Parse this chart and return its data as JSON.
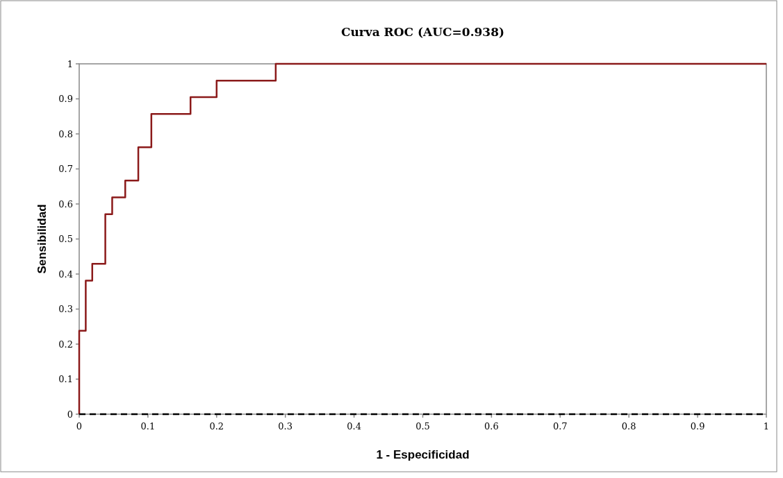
{
  "chart_data": {
    "type": "step",
    "title": "Curva ROC (AUC=0.938)",
    "xlabel": "1 - Especificidad",
    "ylabel": "Sensibilidad",
    "x": [
      0,
      0,
      0.0095,
      0.019,
      0.038,
      0.048,
      0.067,
      0.086,
      0.105,
      0.162,
      0.2,
      0.286,
      1
    ],
    "series": [
      {
        "color": "#8b1a1a",
        "values": [
          0,
          0.238,
          0.381,
          0.429,
          0.571,
          0.619,
          0.667,
          0.762,
          0.857,
          0.905,
          0.952,
          1,
          1
        ]
      }
    ],
    "xlim": [
      0,
      1
    ],
    "ylim": [
      0,
      1
    ],
    "xticks": [
      0,
      0.1,
      0.2,
      0.3,
      0.4,
      0.5,
      0.6,
      0.7,
      0.8,
      0.9,
      1
    ],
    "yticks": [
      0,
      0.1,
      0.2,
      0.3,
      0.4,
      0.5,
      0.6,
      0.7,
      0.8,
      0.9,
      1
    ],
    "grid": false,
    "ref_lines": [
      {
        "axis": "y",
        "value": 0,
        "color": "#000000",
        "line_style": "dashed"
      }
    ]
  }
}
